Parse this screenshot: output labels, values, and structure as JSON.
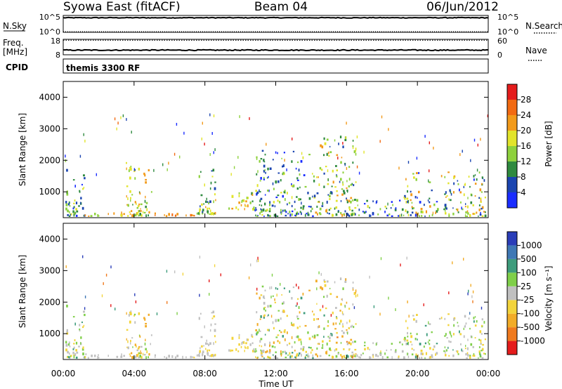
{
  "header": {
    "station": "Syowa East (fitACF)",
    "beam": "Beam 04",
    "date": "06/Jun/2012"
  },
  "aux": {
    "nsky_label": "N.Sky",
    "nsearch_label": "N.Search",
    "nsky_top": "10^5",
    "nsky_bottom": "10^0",
    "nsearch_top": "10^5",
    "nsearch_bottom": "10^0",
    "freq_label_1": "Freq.",
    "freq_label_2": "[MHz]",
    "freq_top": "18",
    "freq_bottom": "8",
    "nave_label": "Nave",
    "nave_top": "60",
    "nave_bottom": "0",
    "cpid_label": "CPID",
    "cpid_value": "themis 3300 RF"
  },
  "axes": {
    "x_label": "Time UT",
    "x_ticks": [
      "00:00",
      "04:00",
      "08:00",
      "12:00",
      "16:00",
      "20:00",
      "00:00"
    ],
    "y_label": "Slant Range [km]",
    "y_ticks": [
      "1000",
      "2000",
      "3000",
      "4000"
    ]
  },
  "colorbars": {
    "power": {
      "label": "Power [dB]",
      "ticks": [
        "4",
        "8",
        "12",
        "16",
        "20",
        "24",
        "28"
      ],
      "colors": [
        "#1a2dff",
        "#1b45b0",
        "#2f8a3f",
        "#8ed13d",
        "#e2e42b",
        "#f29a1a",
        "#f26a12",
        "#e51c1c"
      ]
    },
    "velocity": {
      "label": "Velocity [m s⁻¹]",
      "ticks": [
        "1000",
        "500",
        "100",
        "25",
        "-25",
        "-100",
        "-500",
        "-1000"
      ],
      "colors": [
        "#2a3db8",
        "#3f78b5",
        "#3e9c7c",
        "#7fcf49",
        "#c0c0c0",
        "#f3d43c",
        "#f2ac28",
        "#f07a1e",
        "#e51c1c"
      ]
    }
  },
  "chart_data": [
    {
      "type": "line",
      "title": "N.Sky / N.Search",
      "x": [
        "00:00",
        "04:00",
        "08:00",
        "12:00",
        "16:00",
        "20:00",
        "00:00"
      ],
      "ylim": [
        1,
        100000
      ],
      "log_y": true,
      "series": [
        {
          "name": "N.Sky",
          "values": [
            20000,
            20000,
            20000,
            20000,
            20000,
            20000,
            20000
          ]
        },
        {
          "name": "N.Search",
          "values": [
            1,
            1,
            1,
            1,
            1,
            1,
            1
          ]
        }
      ]
    },
    {
      "type": "line",
      "title": "Freq. / Nave",
      "x": [
        "00:00",
        "04:00",
        "08:00",
        "12:00",
        "16:00",
        "20:00",
        "00:00"
      ],
      "series": [
        {
          "name": "Freq. [MHz]",
          "values": [
            11,
            11,
            11,
            11,
            11,
            11,
            11
          ],
          "ylim": [
            8,
            18
          ]
        },
        {
          "name": "Nave",
          "values": [
            40,
            40,
            40,
            40,
            40,
            40,
            40
          ],
          "ylim": [
            0,
            60
          ]
        }
      ]
    },
    {
      "type": "heatmap",
      "title": "Power",
      "xlabel": "Time UT",
      "ylabel": "Slant Range [km]",
      "xlim_hours": [
        0,
        24
      ],
      "ylim": [
        180,
        4500
      ],
      "value_label": "Power [dB]",
      "clim": [
        0,
        30
      ],
      "clusters": [
        {
          "t": [
            0.1,
            1.2
          ],
          "r": [
            200,
            1700
          ],
          "v": [
            12,
            28
          ]
        },
        {
          "t": [
            1.2,
            3.5
          ],
          "r": [
            200,
            320
          ],
          "v": [
            6,
            16
          ]
        },
        {
          "t": [
            3.5,
            5.0
          ],
          "r": [
            200,
            1900
          ],
          "v": [
            8,
            22
          ]
        },
        {
          "t": [
            5.0,
            7.4
          ],
          "r": [
            200,
            300
          ],
          "v": [
            4,
            12
          ]
        },
        {
          "t": [
            7.5,
            8.6
          ],
          "r": [
            250,
            1700
          ],
          "v": [
            10,
            24
          ]
        },
        {
          "t": [
            9.3,
            10.8
          ],
          "r": [
            400,
            1000
          ],
          "v": [
            10,
            20
          ]
        },
        {
          "t": [
            10.8,
            14.2
          ],
          "r": [
            200,
            2300
          ],
          "v": [
            14,
            30
          ]
        },
        {
          "t": [
            14.2,
            16.5
          ],
          "r": [
            200,
            2700
          ],
          "v": [
            8,
            26
          ]
        },
        {
          "t": [
            16.5,
            19.2
          ],
          "r": [
            200,
            700
          ],
          "v": [
            14,
            30
          ]
        },
        {
          "t": [
            19.2,
            23.8
          ],
          "r": [
            200,
            1600
          ],
          "v": [
            8,
            28
          ]
        }
      ]
    },
    {
      "type": "heatmap",
      "title": "Velocity",
      "xlabel": "Time UT",
      "ylabel": "Slant Range [km]",
      "xlim_hours": [
        0,
        24
      ],
      "ylim": [
        180,
        4500
      ],
      "value_label": "Velocity [m s⁻¹]",
      "clim": [
        -1000,
        1000
      ],
      "clusters": [
        {
          "t": [
            0.1,
            1.2
          ],
          "r": [
            200,
            1900
          ],
          "v": [
            -300,
            400
          ]
        },
        {
          "t": [
            1.2,
            3.5
          ],
          "r": [
            200,
            320
          ],
          "v": [
            -150,
            50
          ]
        },
        {
          "t": [
            3.5,
            5.0
          ],
          "r": [
            200,
            1800
          ],
          "v": [
            -500,
            300
          ]
        },
        {
          "t": [
            5.0,
            7.4
          ],
          "r": [
            200,
            300
          ],
          "v": [
            -120,
            20
          ]
        },
        {
          "t": [
            7.5,
            8.6
          ],
          "r": [
            250,
            1700
          ],
          "v": [
            -200,
            100
          ]
        },
        {
          "t": [
            9.3,
            10.8
          ],
          "r": [
            400,
            1000
          ],
          "v": [
            -300,
            100
          ]
        },
        {
          "t": [
            10.8,
            14.2
          ],
          "r": [
            200,
            2500
          ],
          "v": [
            -500,
            500
          ]
        },
        {
          "t": [
            14.2,
            16.5
          ],
          "r": [
            200,
            2700
          ],
          "v": [
            -600,
            400
          ]
        },
        {
          "t": [
            16.5,
            19.2
          ],
          "r": [
            200,
            700
          ],
          "v": [
            -200,
            200
          ]
        },
        {
          "t": [
            19.2,
            23.8
          ],
          "r": [
            200,
            1600
          ],
          "v": [
            -300,
            400
          ]
        }
      ]
    }
  ]
}
